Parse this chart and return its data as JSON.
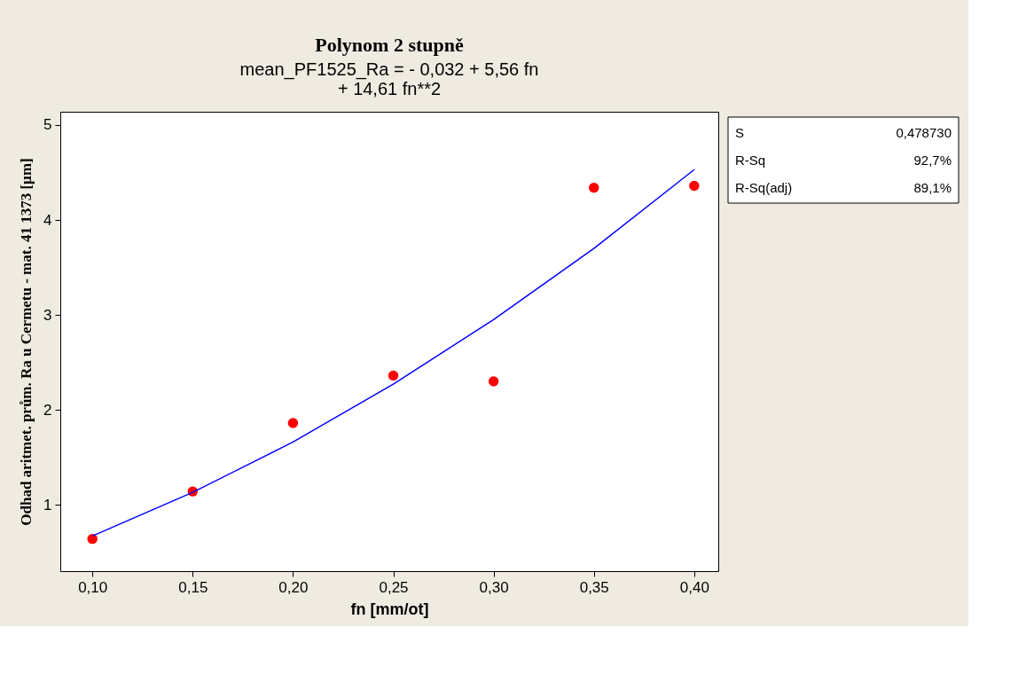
{
  "chart_data": {
    "type": "scatter",
    "title": "Polynom 2 stupně",
    "subtitle": "mean_PF1525_Ra =  - 0,032 + 5,56 fn\n+ 14,61 fn**2",
    "xlabel": "fn [mm/ot]",
    "ylabel": "Odhad aritmet. prům. Ra u Cermetu - mat. 41 1373 [µm]",
    "series": [
      {
        "marker": "circle",
        "color": "#ff0000",
        "x": [
          0.1,
          0.15,
          0.2,
          0.25,
          0.3,
          0.35,
          0.4
        ],
        "values": [
          0.64,
          1.14,
          1.86,
          2.36,
          2.3,
          4.34,
          4.36
        ]
      },
      {
        "type": "line",
        "marker": "none",
        "line_style": "solid",
        "color": "#0000ff",
        "x": [
          0.1,
          0.15,
          0.2,
          0.25,
          0.3,
          0.35,
          0.4
        ],
        "values": [
          0.67,
          1.13,
          1.66,
          2.27,
          2.95,
          3.7,
          4.53
        ]
      }
    ],
    "xlim": [
      0.084,
      0.412
    ],
    "ylim": [
      0.3,
      5.14
    ],
    "xticks": [
      {
        "value": 0.1,
        "label": "0,10"
      },
      {
        "value": 0.15,
        "label": "0,15"
      },
      {
        "value": 0.2,
        "label": "0,20"
      },
      {
        "value": 0.25,
        "label": "0,25"
      },
      {
        "value": 0.3,
        "label": "0,30"
      },
      {
        "value": 0.35,
        "label": "0,35"
      },
      {
        "value": 0.4,
        "label": "0,40"
      }
    ],
    "yticks": [
      1,
      2,
      3,
      4,
      5
    ],
    "annotations": [
      "S 0,478730",
      "R-Sq 92,7%",
      "R-Sq(adj) 89,1%"
    ],
    "grid": false
  }
}
